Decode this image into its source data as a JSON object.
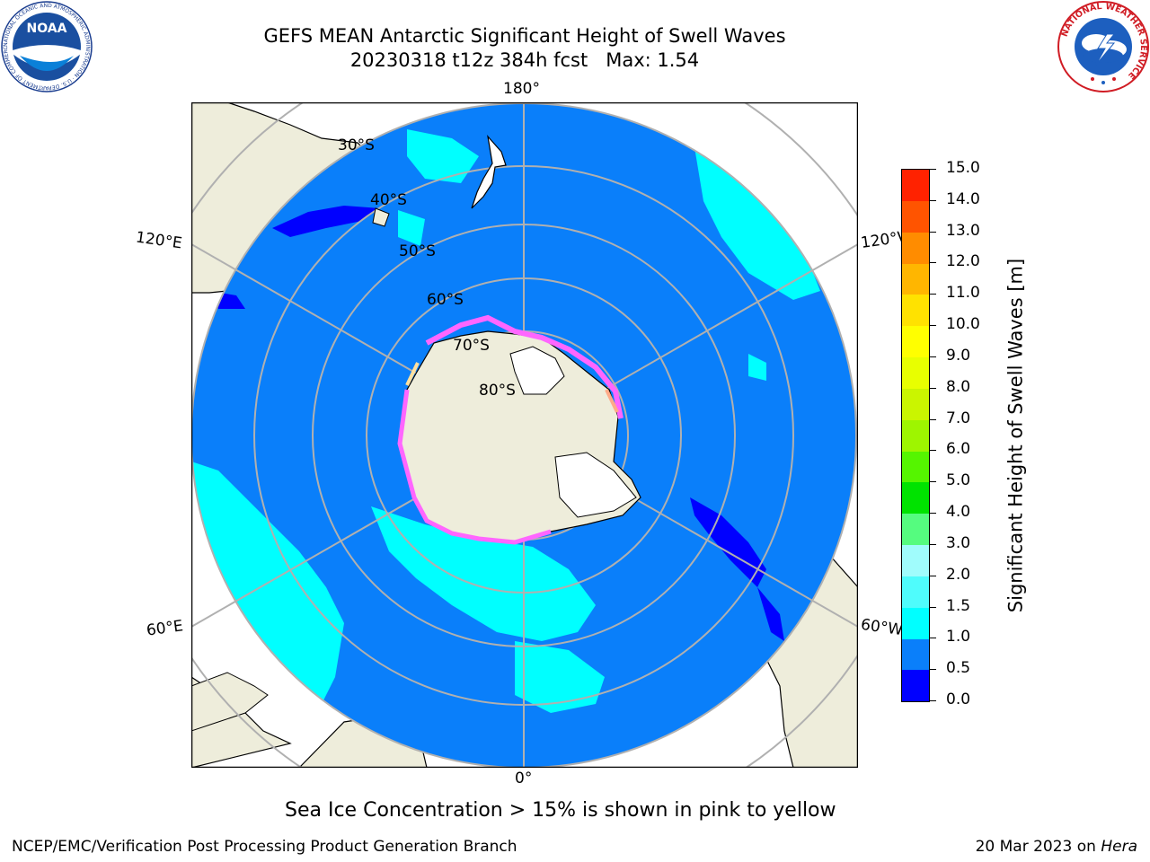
{
  "title": {
    "line1": "GEFS MEAN Antarctic Significant Height of Swell Waves",
    "line2": "20230318 t12z 384h fcst   Max: 1.54"
  },
  "logos": {
    "noaa_text": "NOAA",
    "noaa_ring": "NATIONAL OCEANIC AND ATMOSPHERIC ADMINISTRATION · U.S. DEPARTMENT OF COMMERCE",
    "nws_ring": "NATIONAL WEATHER SERVICE"
  },
  "map": {
    "projection": "south-polar-stereographic",
    "longitude_labels": {
      "top": "180°",
      "bottom": "0°",
      "upper_left": "120°E",
      "upper_right": "120°W",
      "lower_left": "60°E",
      "lower_right": "60°W"
    },
    "latitude_labels": [
      "30°S",
      "40°S",
      "50°S",
      "60°S",
      "70°S",
      "80°S"
    ],
    "colors": {
      "ocean": "#0a7ffa",
      "land": "#eeeddb",
      "sea_ice": "#ffffff",
      "grid": "#b0b0b0",
      "swell_1_15": "#00ffff"
    }
  },
  "colorbar": {
    "title": "Significant Height of Swell Waves [m]",
    "ticks": [
      "0.0",
      "0.5",
      "1.0",
      "1.5",
      "2.0",
      "3.0",
      "4.0",
      "5.0",
      "6.0",
      "7.0",
      "8.0",
      "9.0",
      "10.0",
      "11.0",
      "12.0",
      "13.0",
      "14.0",
      "15.0"
    ],
    "colors": [
      "#0000ff",
      "#0a7ffa",
      "#00ffff",
      "#4ffcfc",
      "#a0fcfc",
      "#55fc7f",
      "#00e300",
      "#55f500",
      "#9ef500",
      "#caf500",
      "#e8ff00",
      "#ffff00",
      "#ffe200",
      "#ffb600",
      "#ff8c00",
      "#ff5400",
      "#ff2200",
      "#ff0000"
    ]
  },
  "note": "Sea Ice Concentration > 15% is shown in pink to yellow",
  "footer": {
    "left": "NCEP/EMC/Verification Post Processing Product Generation Branch",
    "right_prefix": "20 Mar 2023 on ",
    "right_italic": "Hera"
  }
}
